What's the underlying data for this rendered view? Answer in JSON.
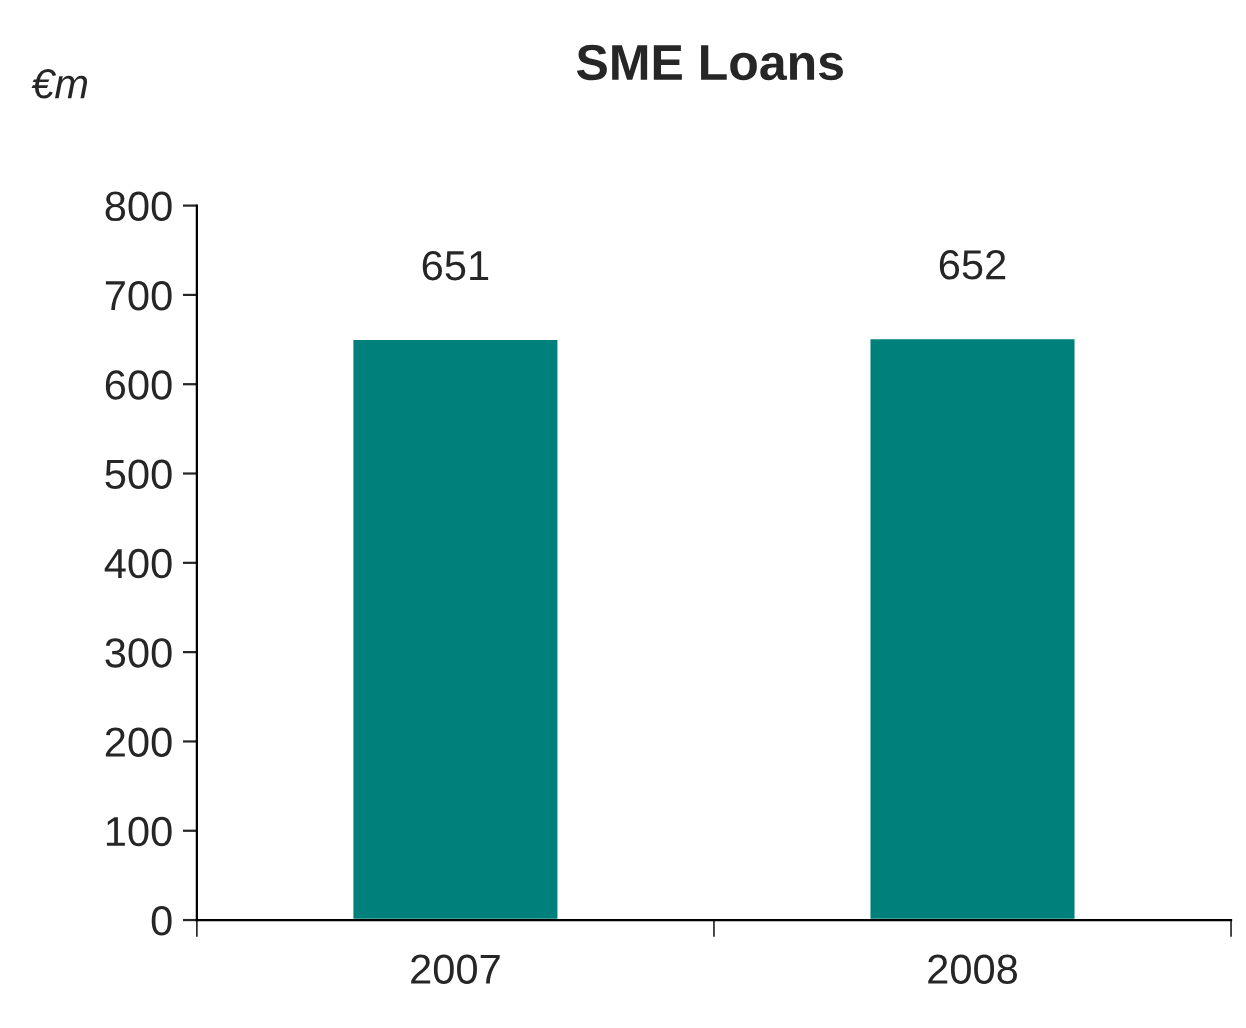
{
  "chart_data": {
    "type": "bar",
    "title": "SME Loans",
    "ylabel": "€m",
    "categories": [
      "2007",
      "2008"
    ],
    "values": [
      651,
      652
    ],
    "color": "#00807a",
    "ylim": [
      0,
      800
    ],
    "yticks": [
      0,
      100,
      200,
      300,
      400,
      500,
      600,
      700,
      800
    ],
    "data_labels": true,
    "grid": false
  }
}
